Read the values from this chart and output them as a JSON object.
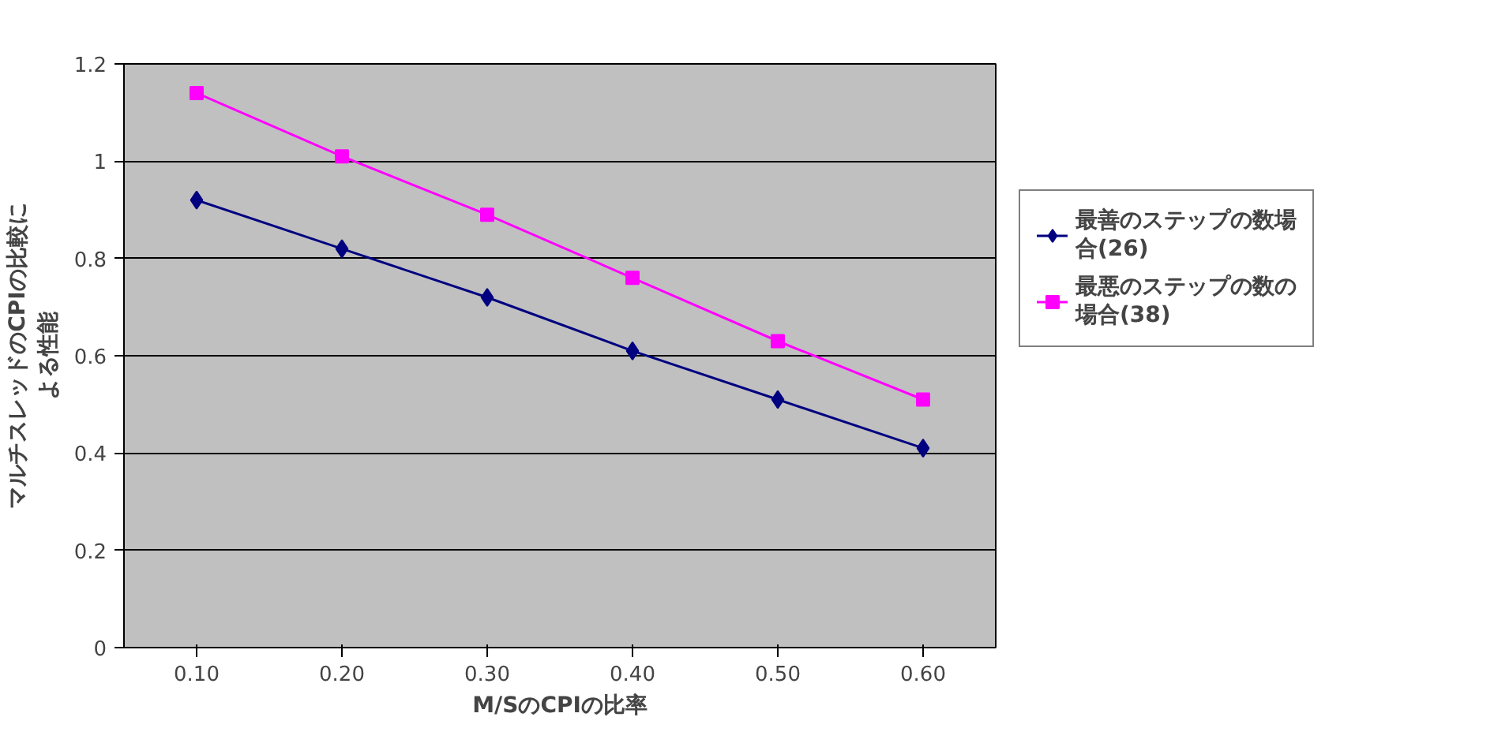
{
  "chart_data": {
    "type": "line",
    "xlabel": "M/SのCPIの比率",
    "ylabel": "マルチスレッドのCPIの比較による性能",
    "categories": [
      "0.10",
      "0.20",
      "0.30",
      "0.40",
      "0.50",
      "0.60"
    ],
    "series": [
      {
        "name": "最善のステップの数場合(26)",
        "color": "#000080",
        "marker": "diamond",
        "values": [
          0.92,
          0.82,
          0.72,
          0.61,
          0.51,
          0.41
        ]
      },
      {
        "name": "最悪のステップの数の場合(38)",
        "color": "#ff00ff",
        "marker": "square",
        "values": [
          1.14,
          1.01,
          0.89,
          0.76,
          0.63,
          0.51
        ]
      }
    ],
    "ylim": [
      0,
      1.2
    ],
    "yticks": [
      0,
      0.2,
      0.4,
      0.6,
      0.8,
      1,
      1.2
    ],
    "grid": "y",
    "legend": "right",
    "line_style": "solid"
  }
}
